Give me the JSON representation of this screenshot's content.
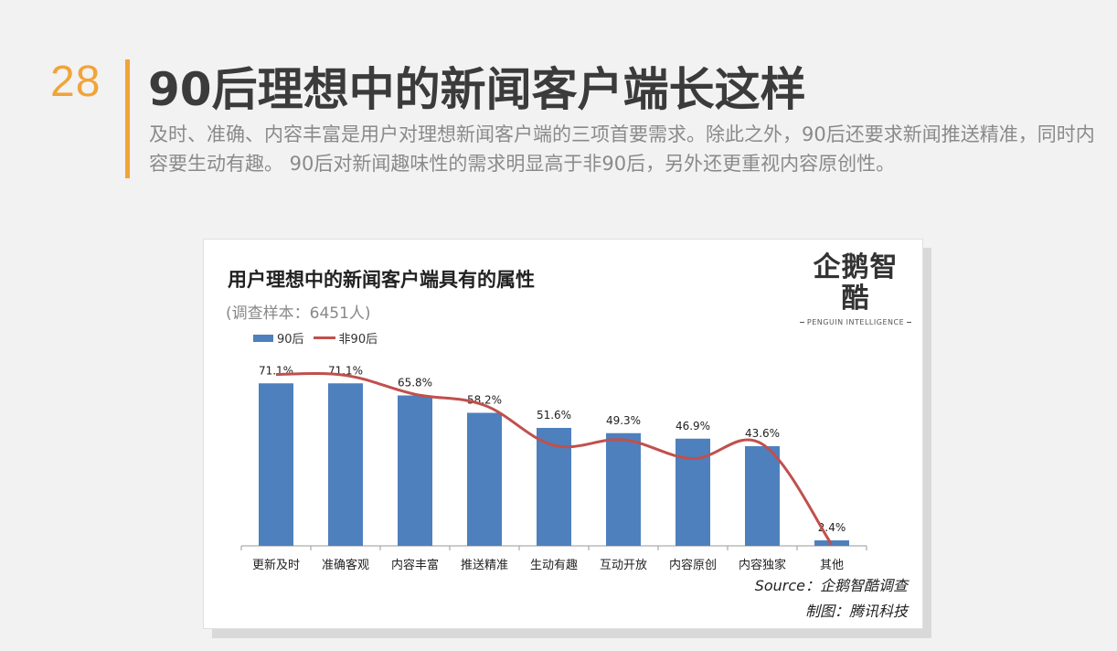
{
  "page": {
    "number": "28",
    "headline": "90后理想中的新闻客户端长这样",
    "subtitle": "及时、准确、内容丰富是用户对理想新闻客户端的三项首要需求。除此之外，90后还要求新闻推送精准，同时内容要生动有趣。 90后对新闻趣味性的需求明显高于非90后，另外还更重视内容原创性。"
  },
  "logo": {
    "text": "企鹅智酷",
    "subtext": "PENGUIN INTELLIGENCE"
  },
  "credits": {
    "source": "Source：企鹅智酷调查",
    "maker": "制图：腾讯科技"
  },
  "chart_data": {
    "type": "bar",
    "title": "用户理想中的新闻客户端具有的属性",
    "note": "(调查样本：6451人)",
    "categories": [
      "更新及时",
      "准确客观",
      "内容丰富",
      "推送精准",
      "生动有趣",
      "互动开放",
      "内容原创",
      "内容独家",
      "其他"
    ],
    "series": [
      {
        "name": "90后",
        "kind": "bar",
        "color": "#4e80bd",
        "values": [
          71.1,
          71.1,
          65.8,
          58.2,
          51.6,
          49.3,
          46.9,
          43.6,
          2.4
        ],
        "labels": [
          "71.1%",
          "71.1%",
          "65.8%",
          "58.2%",
          "51.6%",
          "49.3%",
          "46.9%",
          "43.6%",
          "2.4%"
        ]
      },
      {
        "name": "非90后",
        "kind": "line",
        "color": "#c0504d",
        "values": [
          75.0,
          74.6,
          66.3,
          61.5,
          44.0,
          46.4,
          38.2,
          44.5,
          0.5
        ]
      }
    ],
    "ylim": [
      0,
      80
    ],
    "grid": false,
    "legend": "top-left"
  }
}
